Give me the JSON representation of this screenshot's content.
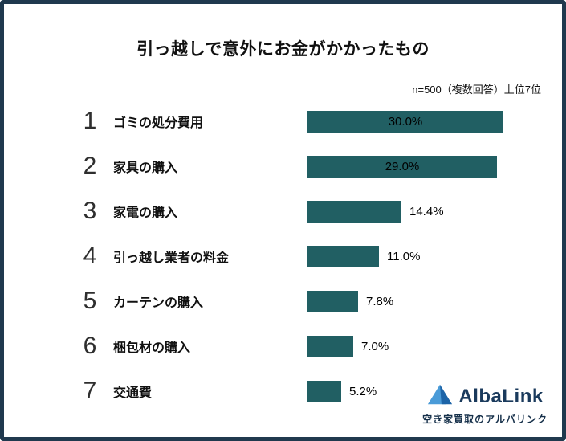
{
  "chart_data": {
    "type": "bar",
    "orientation": "horizontal",
    "title": "引っ越しで意外にお金がかかったもの",
    "note": "n=500（複数回答）上位7位",
    "ranks": [
      "1",
      "2",
      "3",
      "4",
      "5",
      "6",
      "7"
    ],
    "categories": [
      "ゴミの処分費用",
      "家具の購入",
      "家電の購入",
      "引っ越し業者の料金",
      "カーテンの購入",
      "梱包材の購入",
      "交通費"
    ],
    "values": [
      30.0,
      29.0,
      14.4,
      11.0,
      7.8,
      7.0,
      5.2
    ],
    "value_labels": [
      "30.0%",
      "29.0%",
      "14.4%",
      "11.0%",
      "7.8%",
      "7.0%",
      "5.2%"
    ],
    "xlim": [
      0,
      30
    ],
    "bar_color": "#215f63",
    "grid": false,
    "legend": false,
    "value_label_inside_threshold": 20
  },
  "logo": {
    "name": "AlbaLink",
    "tagline": "空き家買取のアルバリンク",
    "accent_light": "#4a9bd8",
    "accent_dark": "#1c64a8"
  }
}
